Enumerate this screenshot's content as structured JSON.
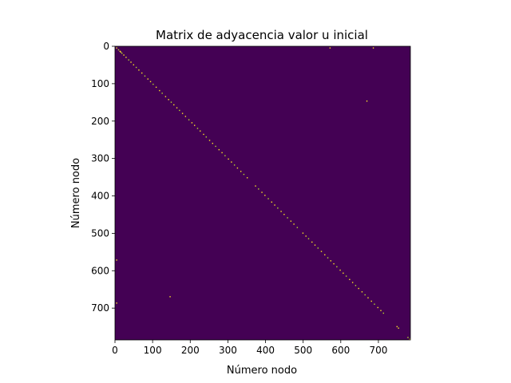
{
  "chart_data": {
    "type": "heatmap",
    "title": "Matrix de adyacencia valor u inicial",
    "xlabel": "Número nodo",
    "ylabel": "Número nodo",
    "matrix_size": 785,
    "xlim": [
      0,
      785
    ],
    "ylim": [
      785,
      0
    ],
    "xticks": [
      0,
      100,
      200,
      300,
      400,
      500,
      600,
      700
    ],
    "yticks": [
      0,
      100,
      200,
      300,
      400,
      500,
      600,
      700
    ],
    "xtick_labels": [
      "0",
      "100",
      "200",
      "300",
      "400",
      "500",
      "600",
      "700"
    ],
    "ytick_labels": [
      "0",
      "100",
      "200",
      "300",
      "400",
      "500",
      "600",
      "700"
    ],
    "background_value": 0,
    "background_color": "#440154",
    "highlight_color": "#fde725",
    "highlight_secondary_color": "#b5de2b",
    "colormap": "viridis",
    "grid": false,
    "nonzero_diagonal_nodes": [
      3,
      8,
      12,
      14,
      17,
      22,
      28,
      35,
      41,
      48,
      55,
      62,
      70,
      78,
      86,
      93,
      100,
      108,
      117,
      124,
      133,
      141,
      148,
      155,
      163,
      170,
      178,
      186,
      195,
      203,
      210,
      218,
      225,
      234,
      241,
      250,
      258,
      266,
      275,
      283,
      291,
      300,
      308,
      316,
      324,
      333,
      341,
      350,
      372,
      380,
      389,
      397,
      406,
      415,
      423,
      431,
      440,
      448,
      457,
      466,
      474,
      483,
      498,
      506,
      513,
      522,
      530,
      538,
      547,
      556,
      564,
      572,
      580,
      588,
      597,
      605,
      613,
      622,
      630,
      638,
      646,
      655,
      663,
      671,
      680,
      688,
      697,
      705,
      712,
      748,
      752,
      777,
      782
    ],
    "off_diagonal_points": [
      {
        "row": 3,
        "col": 570
      },
      {
        "row": 3,
        "col": 685
      },
      {
        "row": 145,
        "col": 668
      },
      {
        "row": 570,
        "col": 3
      },
      {
        "row": 668,
        "col": 145
      },
      {
        "row": 685,
        "col": 3
      }
    ]
  }
}
